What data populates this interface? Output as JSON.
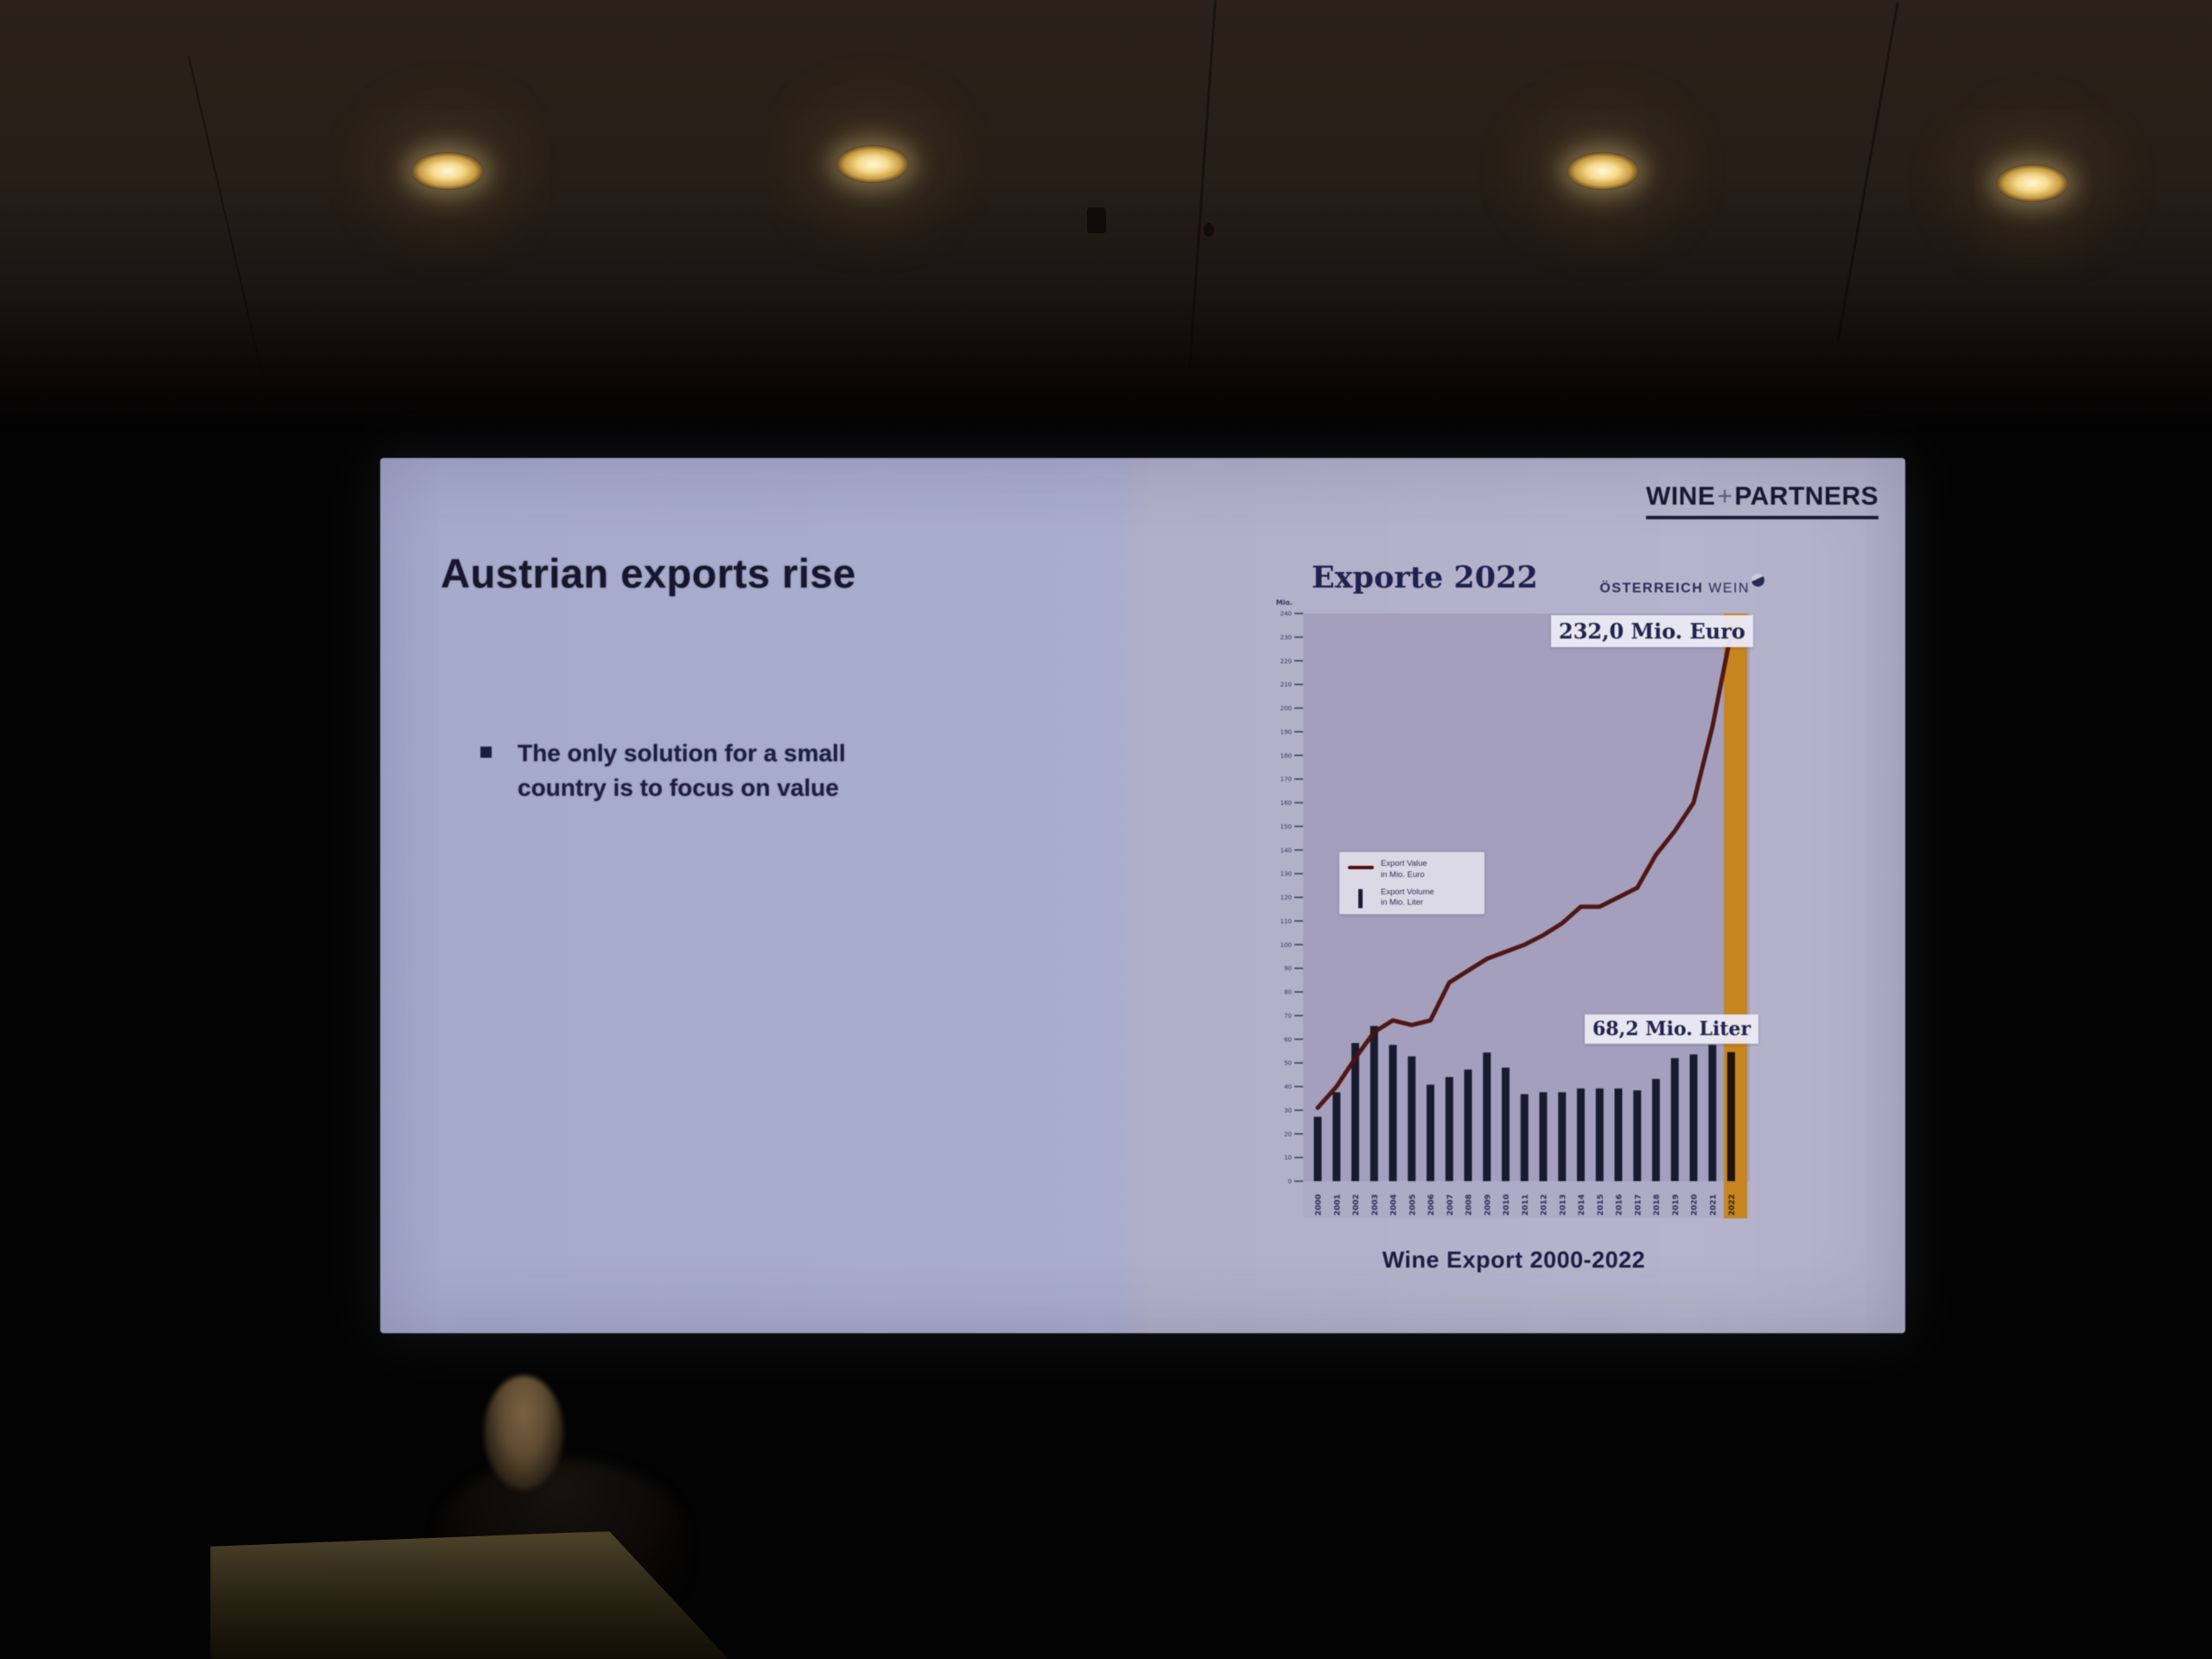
{
  "slide": {
    "title": "Austrian exports rise",
    "bullet_lines": [
      "The only solution for a small",
      "country is to focus on value"
    ],
    "brand": {
      "segments": [
        "WINE",
        "+",
        "PARTNERS"
      ]
    },
    "chart_header": {
      "title": "Exporte 2022",
      "logo_bold": "ÖSTERREICH",
      "logo_light": "WEIN"
    },
    "caption": "Wine Export 2000-2022"
  },
  "colors": {
    "slide_background": "#aeafcc",
    "plot_background": "#a49fbe",
    "bar": "#1a1a30",
    "line": "#4e100b",
    "highlight_column": "#c9851c",
    "marker_dot": "#a11d0f",
    "text_navy": "#1f2050"
  },
  "chart_data": {
    "type": "line+bar",
    "title": "Exporte 2022",
    "caption": "Wine Export 2000-2022",
    "x": [
      "2000",
      "2001",
      "2002",
      "2003",
      "2004",
      "2005",
      "2006",
      "2007",
      "2008",
      "2009",
      "2010",
      "2011",
      "2012",
      "2013",
      "2014",
      "2015",
      "2016",
      "2017",
      "2018",
      "2019",
      "2020",
      "2021",
      "2022"
    ],
    "series": [
      {
        "name": "Export Value in Mio. Euro",
        "kind": "line",
        "color": "#4e100b",
        "axis_max": 240,
        "values": [
          31,
          40,
          52,
          63,
          68,
          66,
          68,
          84,
          89,
          94,
          97,
          100,
          104,
          109,
          116,
          116,
          120,
          124,
          138,
          148,
          160,
          192,
          232
        ]
      },
      {
        "name": "Export Volume in Mio. Liter",
        "kind": "bar",
        "color": "#1a1a30",
        "axis_max": 300,
        "values": [
          34,
          47,
          73,
          82,
          72,
          66,
          51,
          55,
          59,
          68,
          60,
          46,
          47,
          47,
          49,
          49,
          49,
          48,
          54,
          65,
          67,
          72,
          68.2
        ]
      }
    ],
    "y_axis": {
      "min": 0,
      "max": 240,
      "tick_step": 10,
      "unit": "Mio."
    },
    "legend": [
      {
        "line1": "Export Value",
        "line2": "in Mio. Euro"
      },
      {
        "line1": "Export Volume",
        "line2": "in Mio. Liter"
      }
    ],
    "annotations": [
      {
        "id": "value_2022",
        "text": "232,0 Mio. Euro"
      },
      {
        "id": "volume_2022",
        "text": "68,2 Mio. Liter"
      }
    ],
    "highlight": {
      "year": "2022",
      "color": "#c9851c",
      "bar_color": "#201208",
      "label_color": "#33210a"
    },
    "point_marker": {
      "year": "2022",
      "color": "#a11d0f"
    },
    "grid": false,
    "legend_position": "middle-left"
  }
}
